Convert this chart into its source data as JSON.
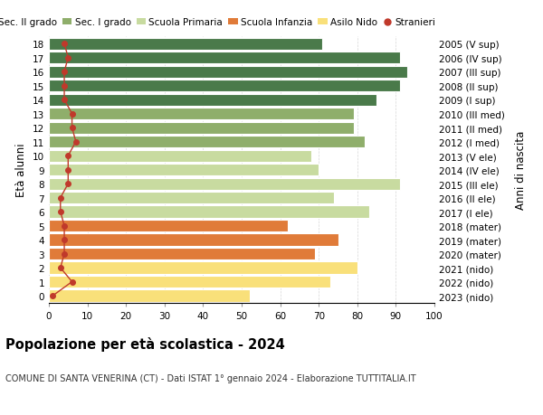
{
  "ages": [
    0,
    1,
    2,
    3,
    4,
    5,
    6,
    7,
    8,
    9,
    10,
    11,
    12,
    13,
    14,
    15,
    16,
    17,
    18
  ],
  "right_labels": [
    "2023 (nido)",
    "2022 (nido)",
    "2021 (nido)",
    "2020 (mater)",
    "2019 (mater)",
    "2018 (mater)",
    "2017 (I ele)",
    "2016 (II ele)",
    "2015 (III ele)",
    "2014 (IV ele)",
    "2013 (V ele)",
    "2012 (I med)",
    "2011 (II med)",
    "2010 (III med)",
    "2009 (I sup)",
    "2008 (II sup)",
    "2007 (III sup)",
    "2006 (IV sup)",
    "2005 (V sup)"
  ],
  "bar_values": [
    52,
    73,
    80,
    69,
    75,
    62,
    83,
    74,
    91,
    70,
    68,
    82,
    79,
    79,
    85,
    91,
    93,
    91,
    71
  ],
  "stranieri_values": [
    1,
    6,
    3,
    4,
    4,
    4,
    3,
    3,
    5,
    5,
    5,
    7,
    6,
    6,
    4,
    4,
    4,
    5,
    4
  ],
  "color_by_age": [
    "#f9e07a",
    "#f9e07a",
    "#f9e07a",
    "#e07b39",
    "#e07b39",
    "#e07b39",
    "#c8dba0",
    "#c8dba0",
    "#c8dba0",
    "#c8dba0",
    "#c8dba0",
    "#8fae6b",
    "#8fae6b",
    "#8fae6b",
    "#4a7a4a",
    "#4a7a4a",
    "#4a7a4a",
    "#4a7a4a",
    "#4a7a4a"
  ],
  "stranieri_color": "#c0392b",
  "legend_labels": [
    "Sec. II grado",
    "Sec. I grado",
    "Scuola Primaria",
    "Scuola Infanzia",
    "Asilo Nido",
    "Stranieri"
  ],
  "legend_colors": [
    "#4a7a4a",
    "#8fae6b",
    "#c8dba0",
    "#e07b39",
    "#f9e07a",
    "#c0392b"
  ],
  "title": "Popolazione per età scolastica - 2024",
  "subtitle": "COMUNE DI SANTA VENERINA (CT) - Dati ISTAT 1° gennaio 2024 - Elaborazione TUTTITALIA.IT",
  "ylabel_left": "Età alunni",
  "ylabel_right": "Anni di nascita",
  "xlim": [
    0,
    100
  ],
  "xticks": [
    0,
    10,
    20,
    30,
    40,
    50,
    60,
    70,
    80,
    90,
    100
  ],
  "bg_color": "#ffffff",
  "bar_height": 0.85
}
